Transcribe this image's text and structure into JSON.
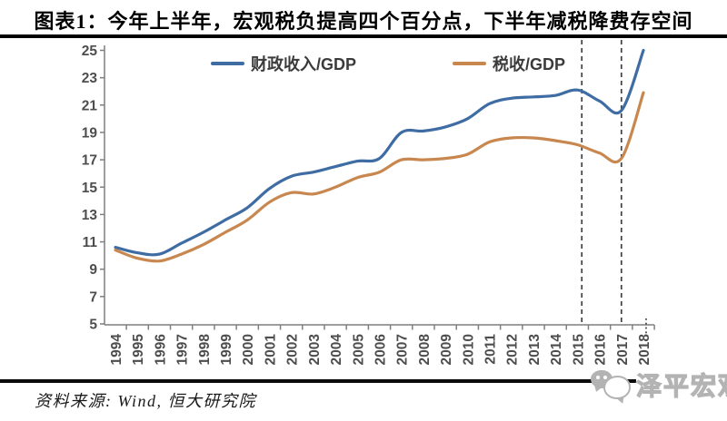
{
  "title": "图表1：今年上半年，宏观税负提高四个百分点，下半年减税降费存空间",
  "source_note": "资料来源: Wind, 恒大研究院",
  "watermark": {
    "text": "泽平宏观",
    "icon": "wechat-icon"
  },
  "colors": {
    "fiscal_line": "#3e6ca3",
    "tax_line": "#c8874f",
    "axis": "#7f7f7f",
    "tick_text": "#4d4d4d",
    "dashed_marker": "#404040",
    "title_text": "#000000",
    "watermark_gray": "#b3b3b3"
  },
  "legend": [
    {
      "label": "财政收入/GDP",
      "color": "#3e6ca3"
    },
    {
      "label": "税收/GDP",
      "color": "#c8874f"
    }
  ],
  "chart_data": {
    "type": "line",
    "title": "图表1：今年上半年，宏观税负提高四个百分点，下半年减税降费存空间",
    "x": [
      1994,
      1995,
      1996,
      1997,
      1998,
      1999,
      2000,
      2001,
      2002,
      2003,
      2004,
      2005,
      2006,
      2007,
      2008,
      2009,
      2010,
      2011,
      2012,
      2013,
      2014,
      2015,
      2016,
      2017,
      2018
    ],
    "series": [
      {
        "name": "财政收入/GDP",
        "color": "#3e6ca3",
        "values": [
          10.6,
          10.2,
          10.1,
          10.9,
          11.7,
          12.6,
          13.5,
          14.9,
          15.8,
          16.1,
          16.5,
          16.9,
          17.1,
          19.0,
          19.1,
          19.4,
          20.0,
          21.1,
          21.5,
          21.6,
          21.7,
          22.1,
          21.3,
          20.6,
          25.0
        ]
      },
      {
        "name": "税收/GDP",
        "color": "#c8874f",
        "values": [
          10.4,
          9.8,
          9.6,
          10.1,
          10.8,
          11.7,
          12.6,
          13.9,
          14.6,
          14.5,
          15.0,
          15.7,
          16.1,
          17.0,
          17.0,
          17.1,
          17.4,
          18.3,
          18.6,
          18.6,
          18.4,
          18.1,
          17.5,
          17.1,
          21.9
        ]
      }
    ],
    "ylim": [
      5,
      25
    ],
    "ytick_step": 2,
    "yticks": [
      5,
      7,
      9,
      11,
      13,
      15,
      17,
      19,
      21,
      23,
      25
    ],
    "dashed_markers": [
      2015.2,
      2017
    ],
    "dotted_marker": 2018,
    "grid": false,
    "smoothed": true,
    "legend_position": "top",
    "xlabel": "",
    "ylabel": ""
  }
}
